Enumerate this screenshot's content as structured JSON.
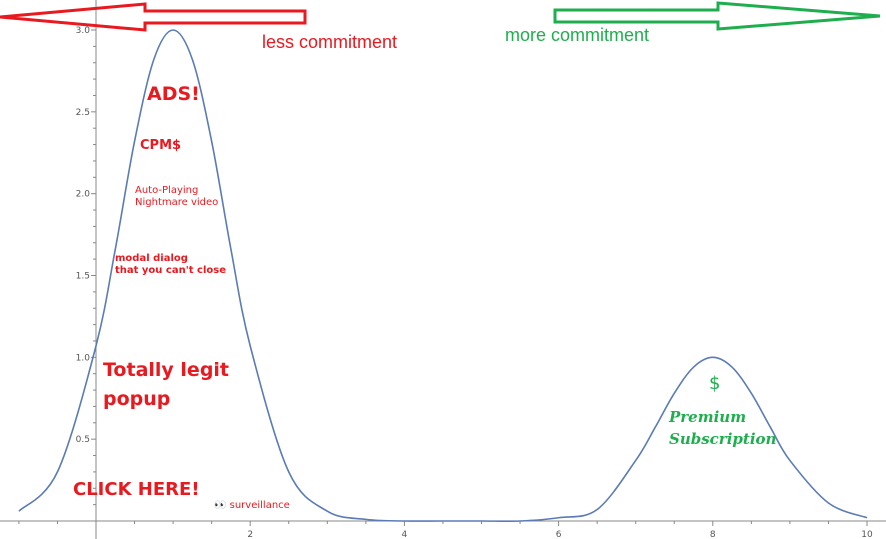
{
  "chart_data": {
    "type": "line",
    "title": "",
    "xlabel": "",
    "ylabel": "",
    "xlim": [
      -1,
      10
    ],
    "ylim": [
      0,
      3.1
    ],
    "x_ticks": [
      2,
      4,
      6,
      8,
      10
    ],
    "y_ticks": [
      0.5,
      1.0,
      1.5,
      2.0,
      2.5,
      3.0
    ],
    "x_tick_labels": [
      "2",
      "4",
      "6",
      "8",
      "10"
    ],
    "y_tick_labels": [
      "0.5",
      "1.0",
      "1.5",
      "2.0",
      "2.5",
      "3.0"
    ],
    "grid": false,
    "series": [
      {
        "color": "#5a7bb5",
        "x": [
          -1,
          -0.5,
          0,
          0.25,
          0.5,
          0.75,
          1,
          1.25,
          1.5,
          1.75,
          2,
          2.5,
          3,
          3.5,
          4,
          4.5,
          5,
          5.5,
          6,
          6.5,
          7,
          7.25,
          7.5,
          7.75,
          8,
          8.25,
          8.5,
          8.75,
          9,
          9.5,
          10
        ],
        "y": [
          0.06,
          0.3,
          1.07,
          1.66,
          2.32,
          2.82,
          3.0,
          2.82,
          2.32,
          1.66,
          1.07,
          0.3,
          0.06,
          0.01,
          0.0,
          0.0,
          0.0,
          0.0,
          0.02,
          0.07,
          0.37,
          0.57,
          0.78,
          0.94,
          1.0,
          0.94,
          0.78,
          0.57,
          0.37,
          0.11,
          0.02
        ]
      }
    ],
    "annotations": {
      "less_commitment": "less commitment",
      "more_commitment": "more commitment",
      "ads": "ADS!",
      "cpm": "CPM$",
      "autoplay_line1": "Auto-Playing",
      "autoplay_line2": "Nightmare video",
      "modal_line1": "modal dialog",
      "modal_line2": "that you can't close",
      "popup_line1": "Totally legit",
      "popup_line2": "popup",
      "click_here": "CLICK HERE!",
      "surveillance": "👀 surveillance",
      "dollar": "$",
      "premium_line1": "Premium",
      "premium_line2": "Subscription"
    }
  },
  "colors": {
    "line": "#5a7bb5",
    "axis": "#888888",
    "red": "#e8191f",
    "green": "#1fae4e"
  }
}
